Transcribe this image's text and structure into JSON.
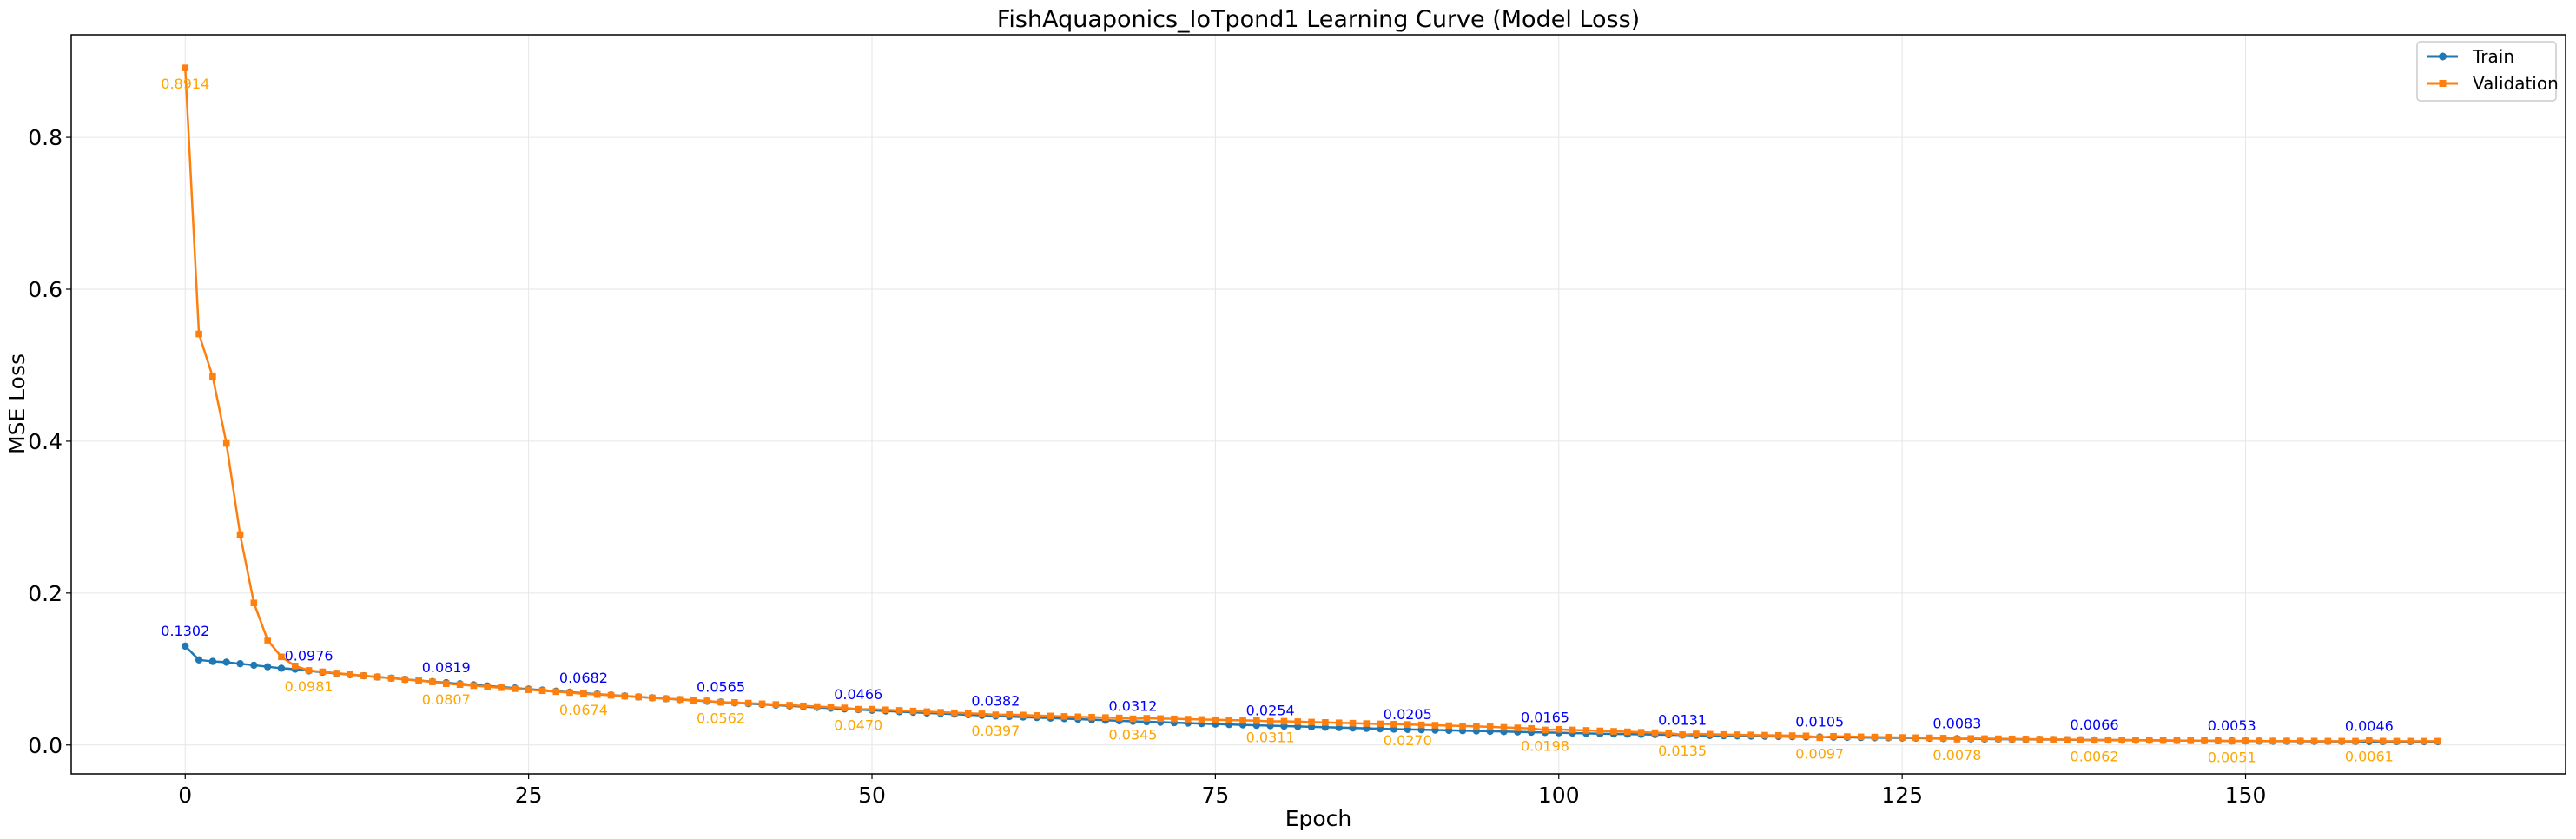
{
  "chart_data": {
    "type": "line",
    "title": "FishAquaponics_IoTpond1 Learning Curve (Model Loss)",
    "xlabel": "Epoch",
    "ylabel": "MSE Loss",
    "xlim": [
      -8.3,
      173.3
    ],
    "ylim": [
      -0.038,
      0.935
    ],
    "xticks": [
      0,
      25,
      50,
      75,
      100,
      125,
      150
    ],
    "yticks": [
      0.0,
      0.2,
      0.4,
      0.6,
      0.8
    ],
    "ytick_labels": [
      "0.0",
      "0.2",
      "0.4",
      "0.6",
      "0.8"
    ],
    "grid": true,
    "legend_position": "top-right",
    "colors": {
      "train": "#1f77b4",
      "validation": "#ff7f0e",
      "train_label": "#0000ff",
      "validation_label": "#ffa500"
    },
    "x": [
      0,
      1,
      2,
      3,
      4,
      5,
      6,
      7,
      8,
      9,
      10,
      11,
      12,
      13,
      14,
      15,
      16,
      17,
      18,
      19,
      20,
      21,
      22,
      23,
      24,
      25,
      26,
      27,
      28,
      29,
      30,
      31,
      32,
      33,
      34,
      35,
      36,
      37,
      38,
      39,
      40,
      41,
      42,
      43,
      44,
      45,
      46,
      47,
      48,
      49,
      50,
      51,
      52,
      53,
      54,
      55,
      56,
      57,
      58,
      59,
      60,
      61,
      62,
      63,
      64,
      65,
      66,
      67,
      68,
      69,
      70,
      71,
      72,
      73,
      74,
      75,
      76,
      77,
      78,
      79,
      80,
      81,
      82,
      83,
      84,
      85,
      86,
      87,
      88,
      89,
      90,
      91,
      92,
      93,
      94,
      95,
      96,
      97,
      98,
      99,
      100,
      101,
      102,
      103,
      104,
      105,
      106,
      107,
      108,
      109,
      110,
      111,
      112,
      113,
      114,
      115,
      116,
      117,
      118,
      119,
      120,
      121,
      122,
      123,
      124,
      125,
      126,
      127,
      128,
      129,
      130,
      131,
      132,
      133,
      134,
      135,
      136,
      137,
      138,
      139,
      140,
      141,
      142,
      143,
      144,
      145,
      146,
      147,
      148,
      149,
      150,
      151,
      152,
      153,
      154,
      155,
      156,
      157,
      158,
      159,
      160,
      161,
      162,
      163,
      164
    ],
    "series": [
      {
        "name": "Train",
        "values": [
          0.1302,
          0.112,
          0.11,
          0.109,
          0.107,
          0.105,
          0.103,
          0.101,
          0.0998,
          0.0976,
          0.0958,
          0.0942,
          0.0926,
          0.0911,
          0.0895,
          0.088,
          0.0864,
          0.0849,
          0.0834,
          0.0819,
          0.0805,
          0.0791,
          0.0777,
          0.0763,
          0.0749,
          0.0735,
          0.0722,
          0.0708,
          0.0695,
          0.0682,
          0.0669,
          0.0657,
          0.0645,
          0.0633,
          0.0621,
          0.061,
          0.0598,
          0.0587,
          0.0576,
          0.0565,
          0.0555,
          0.0545,
          0.0535,
          0.0525,
          0.0515,
          0.0505,
          0.0495,
          0.0485,
          0.0475,
          0.0466,
          0.0457,
          0.0448,
          0.0439,
          0.0431,
          0.0422,
          0.0414,
          0.0406,
          0.0398,
          0.039,
          0.0382,
          0.0375,
          0.0368,
          0.0361,
          0.0354,
          0.0347,
          0.034,
          0.0333,
          0.0326,
          0.0319,
          0.0312,
          0.0306,
          0.03,
          0.0294,
          0.0288,
          0.0282,
          0.0276,
          0.027,
          0.0265,
          0.0259,
          0.0254,
          0.0249,
          0.0244,
          0.0239,
          0.0234,
          0.0229,
          0.0224,
          0.0219,
          0.0214,
          0.0209,
          0.0205,
          0.0201,
          0.0197,
          0.0193,
          0.0189,
          0.0185,
          0.0181,
          0.0177,
          0.0173,
          0.0169,
          0.0165,
          0.0161,
          0.0157,
          0.0153,
          0.0149,
          0.0146,
          0.0143,
          0.014,
          0.0137,
          0.0134,
          0.0131,
          0.0128,
          0.0125,
          0.0122,
          0.012,
          0.0117,
          0.0115,
          0.0112,
          0.011,
          0.0107,
          0.0105,
          0.0103,
          0.0101,
          0.0099,
          0.0097,
          0.0095,
          0.0093,
          0.0091,
          0.0089,
          0.0085,
          0.0083,
          0.0081,
          0.0079,
          0.0078,
          0.0076,
          0.0075,
          0.0073,
          0.0072,
          0.007,
          0.0068,
          0.0066,
          0.0065,
          0.0064,
          0.0063,
          0.0062,
          0.006,
          0.0059,
          0.0058,
          0.0057,
          0.0055,
          0.0053,
          0.0052,
          0.0051,
          0.005,
          0.005,
          0.0049,
          0.0048,
          0.0048,
          0.0047,
          0.0047,
          0.0046,
          0.0046,
          0.0045,
          0.0045,
          0.0044,
          0.0044
        ]
      },
      {
        "name": "Validation",
        "values": [
          0.8914,
          0.541,
          0.485,
          0.397,
          0.277,
          0.187,
          0.138,
          0.116,
          0.104,
          0.0981,
          0.0963,
          0.0946,
          0.0929,
          0.0912,
          0.0895,
          0.0879,
          0.0863,
          0.0847,
          0.0831,
          0.0807,
          0.0795,
          0.0781,
          0.0768,
          0.0754,
          0.0741,
          0.0728,
          0.0715,
          0.0702,
          0.069,
          0.0674,
          0.0665,
          0.0654,
          0.0643,
          0.0632,
          0.0621,
          0.061,
          0.06,
          0.059,
          0.058,
          0.0562,
          0.056,
          0.0551,
          0.0542,
          0.0533,
          0.0524,
          0.0515,
          0.0506,
          0.0497,
          0.0488,
          0.047,
          0.0471,
          0.0463,
          0.0455,
          0.0447,
          0.0439,
          0.0431,
          0.0424,
          0.0417,
          0.041,
          0.0397,
          0.04,
          0.0394,
          0.0388,
          0.0382,
          0.0376,
          0.0371,
          0.0366,
          0.0361,
          0.0356,
          0.0345,
          0.0352,
          0.0348,
          0.0344,
          0.034,
          0.0336,
          0.0332,
          0.0328,
          0.0324,
          0.032,
          0.0311,
          0.0312,
          0.0307,
          0.0302,
          0.0297,
          0.0292,
          0.0287,
          0.0282,
          0.0278,
          0.0274,
          0.027,
          0.0265,
          0.026,
          0.0255,
          0.025,
          0.0245,
          0.0239,
          0.0232,
          0.0225,
          0.0218,
          0.0198,
          0.0205,
          0.0198,
          0.0192,
          0.0186,
          0.018,
          0.0174,
          0.0168,
          0.0162,
          0.0156,
          0.0135,
          0.0146,
          0.0142,
          0.0138,
          0.0135,
          0.0132,
          0.0129,
          0.0126,
          0.0123,
          0.012,
          0.0097,
          0.0114,
          0.0111,
          0.0108,
          0.0105,
          0.0102,
          0.0099,
          0.0096,
          0.0093,
          0.009,
          0.0078,
          0.0086,
          0.0084,
          0.0082,
          0.008,
          0.0078,
          0.0076,
          0.0074,
          0.0072,
          0.007,
          0.0062,
          0.0068,
          0.0066,
          0.0064,
          0.0062,
          0.006,
          0.0058,
          0.0057,
          0.0056,
          0.0055,
          0.0051,
          0.0054,
          0.0053,
          0.0052,
          0.0052,
          0.0051,
          0.0051,
          0.005,
          0.005,
          0.005,
          0.0061,
          0.005,
          0.005,
          0.005,
          0.005,
          0.005
        ]
      }
    ],
    "annotations": {
      "train": [
        {
          "x": 0,
          "text": "0.1302"
        },
        {
          "x": 9,
          "text": "0.0976"
        },
        {
          "x": 19,
          "text": "0.0819"
        },
        {
          "x": 29,
          "text": "0.0682"
        },
        {
          "x": 39,
          "text": "0.0565"
        },
        {
          "x": 49,
          "text": "0.0466"
        },
        {
          "x": 59,
          "text": "0.0382"
        },
        {
          "x": 69,
          "text": "0.0312"
        },
        {
          "x": 79,
          "text": "0.0254"
        },
        {
          "x": 89,
          "text": "0.0205"
        },
        {
          "x": 99,
          "text": "0.0165"
        },
        {
          "x": 109,
          "text": "0.0131"
        },
        {
          "x": 119,
          "text": "0.0105"
        },
        {
          "x": 129,
          "text": "0.0083"
        },
        {
          "x": 139,
          "text": "0.0066"
        },
        {
          "x": 149,
          "text": "0.0053"
        },
        {
          "x": 159,
          "text": "0.0046"
        }
      ],
      "validation": [
        {
          "x": 0,
          "text": "0.8914"
        },
        {
          "x": 9,
          "text": "0.0981"
        },
        {
          "x": 19,
          "text": "0.0807"
        },
        {
          "x": 29,
          "text": "0.0674"
        },
        {
          "x": 39,
          "text": "0.0562"
        },
        {
          "x": 49,
          "text": "0.0470"
        },
        {
          "x": 59,
          "text": "0.0397"
        },
        {
          "x": 69,
          "text": "0.0345"
        },
        {
          "x": 79,
          "text": "0.0311"
        },
        {
          "x": 89,
          "text": "0.0270"
        },
        {
          "x": 99,
          "text": "0.0198"
        },
        {
          "x": 109,
          "text": "0.0135"
        },
        {
          "x": 119,
          "text": "0.0097"
        },
        {
          "x": 129,
          "text": "0.0078"
        },
        {
          "x": 139,
          "text": "0.0062"
        },
        {
          "x": 149,
          "text": "0.0051"
        },
        {
          "x": 159,
          "text": "0.0061"
        }
      ]
    }
  }
}
